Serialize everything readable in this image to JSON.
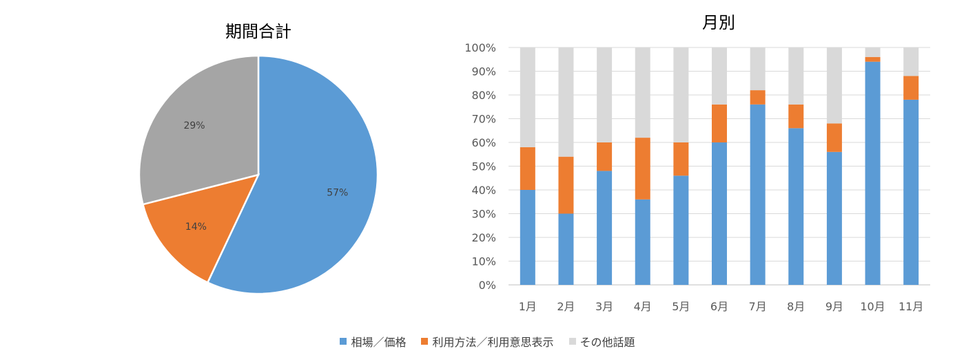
{
  "colors": {
    "blue": "#5B9BD5",
    "orange": "#ED7D31",
    "gray_pie": "#A5A5A5",
    "gray_bar": "#D9D9D9",
    "grid": "#D9D9D9",
    "text": "#595959",
    "title": "#000000"
  },
  "legend": [
    {
      "name": "相場／価格",
      "color": "#5B9BD5"
    },
    {
      "name": "利用方法／利用意思表示",
      "color": "#ED7D31"
    },
    {
      "name": "その他話題",
      "color": "#D9D9D9"
    }
  ],
  "chart_data": [
    {
      "type": "pie",
      "title": "期間合計",
      "slices": [
        {
          "name": "相場／価格",
          "value": 57,
          "label": "57%",
          "color": "#5B9BD5"
        },
        {
          "name": "利用方法／利用意思表示",
          "value": 14,
          "label": "14%",
          "color": "#ED7D31"
        },
        {
          "name": "その他話題",
          "value": 29,
          "label": "29%",
          "color": "#A5A5A5"
        }
      ]
    },
    {
      "type": "bar",
      "stacked": true,
      "title": "月別",
      "categories": [
        "1月",
        "2月",
        "3月",
        "4月",
        "5月",
        "6月",
        "7月",
        "8月",
        "9月",
        "10月",
        "11月"
      ],
      "ylim": [
        0,
        100
      ],
      "yticks": [
        "0%",
        "10%",
        "20%",
        "30%",
        "40%",
        "50%",
        "60%",
        "70%",
        "80%",
        "90%",
        "100%"
      ],
      "grid": true,
      "legend_position": "bottom",
      "series": [
        {
          "name": "相場／価格",
          "color": "#5B9BD5",
          "values": [
            40,
            30,
            48,
            36,
            46,
            60,
            76,
            66,
            56,
            94,
            78
          ]
        },
        {
          "name": "利用方法／利用意思表示",
          "color": "#ED7D31",
          "values": [
            18,
            24,
            12,
            26,
            14,
            16,
            6,
            10,
            12,
            2,
            10
          ]
        },
        {
          "name": "その他話題",
          "color": "#D9D9D9",
          "values": [
            42,
            46,
            40,
            38,
            40,
            24,
            18,
            24,
            32,
            4,
            12
          ]
        }
      ]
    }
  ]
}
